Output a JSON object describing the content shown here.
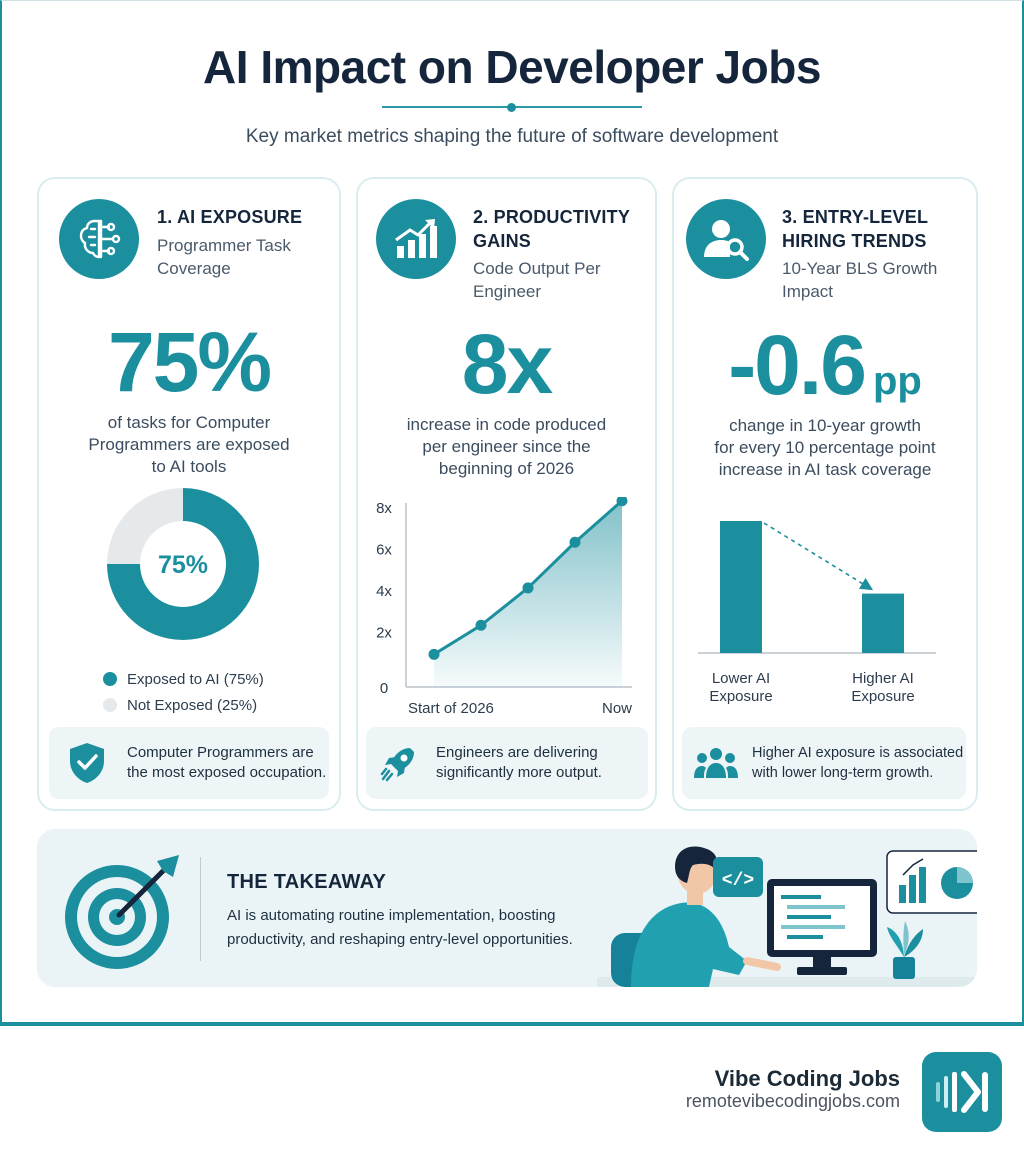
{
  "title": "AI Impact on Developer Jobs",
  "subtitle": "Key market metrics shaping the future of software development",
  "cards": [
    {
      "heading": [
        "1. AI EXPOSURE"
      ],
      "subtitle": [
        "Programmer Task",
        "Coverage"
      ],
      "big": "75%",
      "description": [
        "of tasks for Computer",
        "Programmers are exposed",
        "to AI tools"
      ],
      "note": [
        "Computer Programmers are",
        "the most exposed occupation."
      ],
      "icon": "brain-circuit-icon",
      "note_icon": "shield-check-icon"
    },
    {
      "heading": [
        "2. PRODUCTIVITY",
        "GAINS"
      ],
      "subtitle": [
        "Code Output Per",
        "Engineer"
      ],
      "big": "8x",
      "description": [
        "increase in code produced",
        "per engineer since the",
        "beginning of 2026"
      ],
      "note": [
        "Engineers are delivering",
        "significantly more output."
      ],
      "icon": "bar-chart-up-icon",
      "note_icon": "rocket-icon"
    },
    {
      "heading": [
        "3. ENTRY-LEVEL",
        "HIRING TRENDS"
      ],
      "subtitle": [
        "10-Year BLS Growth",
        "Impact"
      ],
      "big": "-0.6",
      "big_unit": "pp",
      "description": [
        "change in 10-year growth",
        "for every 10 percentage point",
        "increase in AI task coverage"
      ],
      "note": [
        "Higher AI exposure is associated",
        "with lower long-term growth."
      ],
      "icon": "person-search-icon",
      "note_icon": "people-group-icon"
    }
  ],
  "chart_data": [
    {
      "type": "pie",
      "center_label": "75%",
      "slices": [
        {
          "label": "Exposed to AI (75%)",
          "value": 75,
          "color": "#1c8f9e"
        },
        {
          "label": "Not Exposed (25%)",
          "value": 25,
          "color": "#e6e9ec"
        }
      ]
    },
    {
      "type": "area",
      "x": [
        "Start of 2026",
        "",
        "",
        "",
        "Now"
      ],
      "x_tick_labels": [
        "Start of 2026",
        "Now"
      ],
      "y_ticks": [
        "0",
        "2x",
        "4x",
        "6x",
        "8x"
      ],
      "ylim": [
        0,
        8
      ],
      "values": [
        0.9,
        2.3,
        4.1,
        6.3,
        8.3
      ]
    },
    {
      "type": "bar",
      "categories": [
        "Lower AI Exposure",
        "Higher AI Exposure"
      ],
      "category_lines": [
        [
          "Lower AI",
          "Exposure"
        ],
        [
          "Higher AI",
          "Exposure"
        ]
      ],
      "values": [
        1.0,
        0.45
      ]
    }
  ],
  "takeaway": {
    "title": "THE TAKEAWAY",
    "text": "AI is automating routine implementation, boosting productivity, and reshaping entry-level opportunities.",
    "code_symbol": "</>"
  },
  "brand": {
    "name": "Vibe Coding Jobs",
    "url": "remotevibecodingjobs.com"
  },
  "colors": {
    "accent": "#1c8f9e",
    "dark": "#15263c",
    "light": "#e6e9ec"
  }
}
